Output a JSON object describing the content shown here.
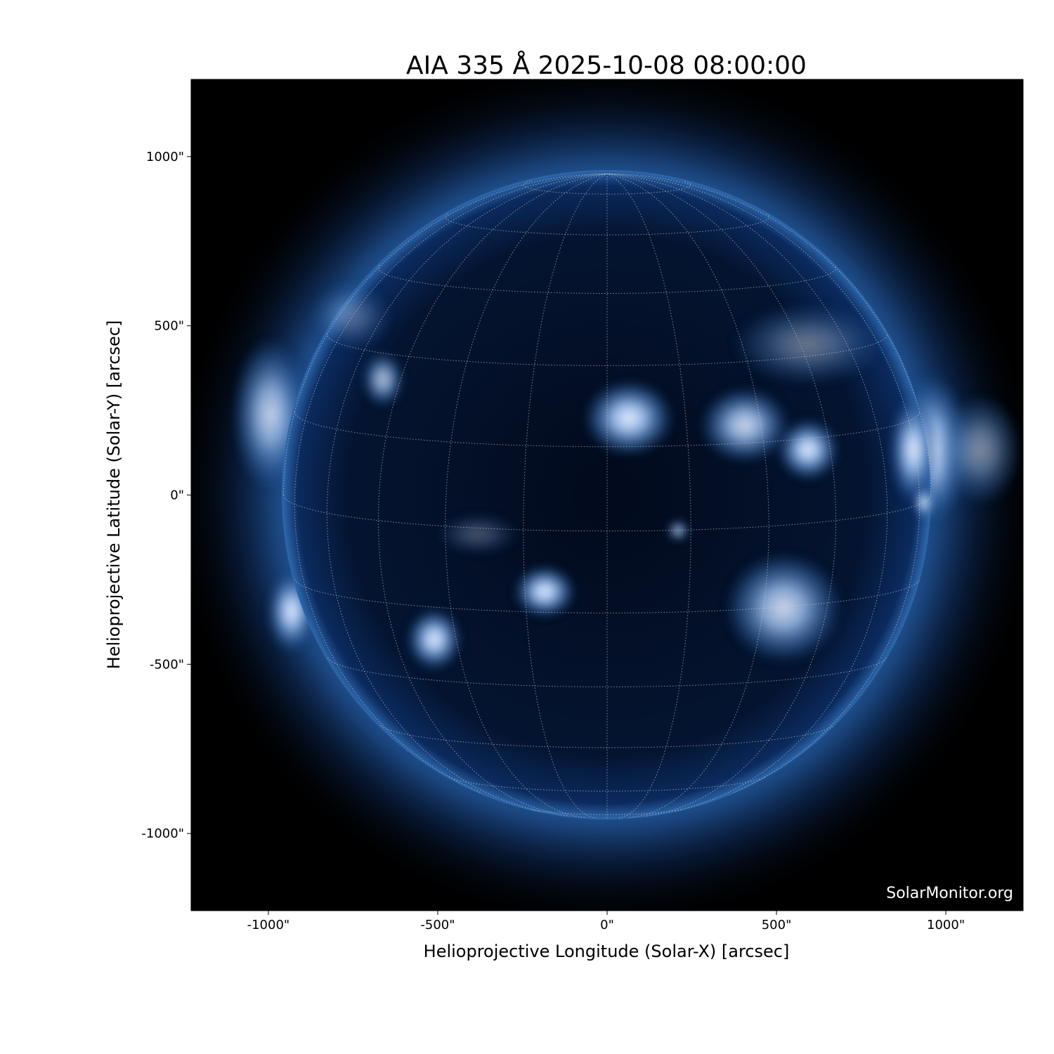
{
  "chart_data": {
    "type": "image",
    "title": "AIA 335 Å 2025-10-08 08:00:00",
    "xlabel": "Helioprojective Longitude (Solar-X) [arcsec]",
    "ylabel": "Helioprojective Latitude (Solar-Y) [arcsec]",
    "xlim": [
      -1228,
      1228
    ],
    "ylim": [
      -1228,
      1228
    ],
    "xticks": [
      -1000,
      -500,
      0,
      500,
      1000
    ],
    "xtick_labels": [
      "-1000\"",
      "-500\"",
      "0\"",
      "500\"",
      "1000\""
    ],
    "yticks": [
      -1000,
      -500,
      0,
      500,
      1000
    ],
    "ytick_labels": [
      "-1000\"",
      "-500\"",
      "0\"",
      "500\"",
      "1000\""
    ],
    "solar_radius_arcsec": 955,
    "grid": {
      "type": "heliographic",
      "spacing_deg": 15,
      "b0_deg": 6.4
    },
    "colormap": "sdoaia335",
    "colors": {
      "background": "#000000",
      "disk": "#04112a",
      "corona": "#2f6fb8",
      "bright": "#e8f0ff"
    },
    "watermark": "SolarMonitor.org"
  }
}
